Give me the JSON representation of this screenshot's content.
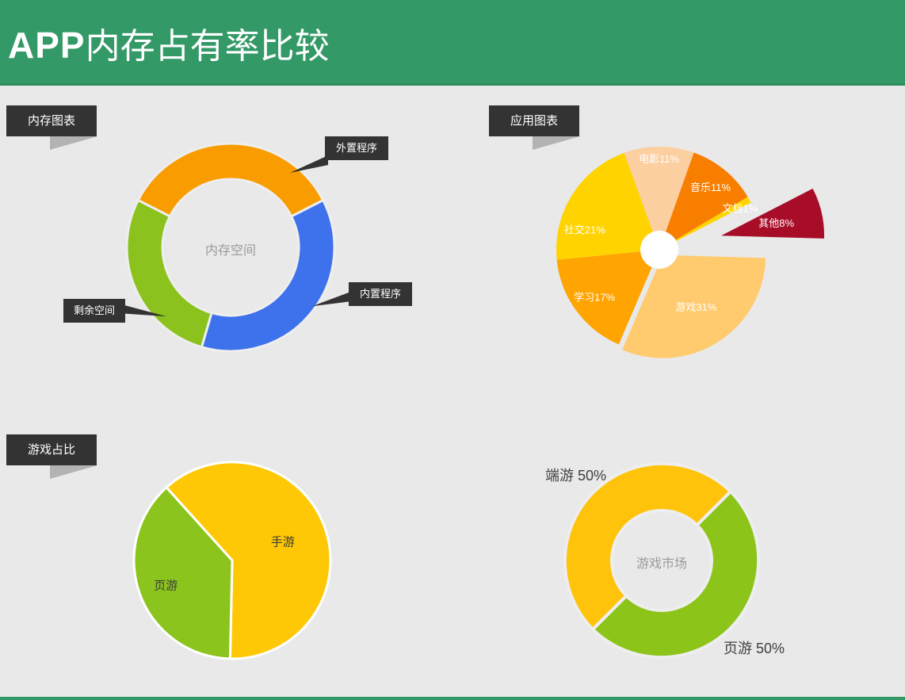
{
  "header": {
    "title_bold": "APP",
    "title_rest": "内存占有率比较"
  },
  "sections": [
    {
      "label": "内存图表"
    },
    {
      "label": "应用图表"
    },
    {
      "label": "游戏占比"
    }
  ],
  "colors": {
    "header_green": "#339966",
    "page_background": "#e9e9e9",
    "label_box_dark": "#333333",
    "fold_gray": "#b3b3b3",
    "center_text_gray": "#9a9a9a"
  },
  "chart_data": [
    {
      "type": "pie",
      "variant": "donut",
      "name": "内存图表",
      "center_label": "内存空间",
      "start_angle": -63,
      "slices": [
        {
          "label": "外置程序",
          "value": 35,
          "color": "#F99C00"
        },
        {
          "label": "内置程序",
          "value": 37,
          "color": "#3E72EC"
        },
        {
          "label": "剩余空间",
          "value": 28,
          "color": "#8CC21E"
        }
      ]
    },
    {
      "type": "pie",
      "name": "应用图表",
      "start_angle": -20,
      "slices": [
        {
          "label": "电影",
          "value": 11,
          "display": "电影11%",
          "color": "#FBCFA0"
        },
        {
          "label": "音乐",
          "value": 11,
          "display": "音乐11%",
          "color": "#F87E00"
        },
        {
          "label": "文档",
          "value": 1,
          "display": "文档1%",
          "color": "#FFD400"
        },
        {
          "label": "其他",
          "value": 8,
          "display": "其他8%",
          "color": "#A80D28",
          "explode": 80
        },
        {
          "label": "游戏",
          "value": 31,
          "display": "游戏31%",
          "color": "#FFCB6E",
          "explode": 8
        },
        {
          "label": "学习",
          "value": 17,
          "display": "学习17%",
          "color": "#FFA400"
        },
        {
          "label": "社交",
          "value": 21,
          "display": "社交21%",
          "color": "#FFD300"
        }
      ]
    },
    {
      "type": "pie",
      "name": "游戏占比",
      "start_angle": -42,
      "slices": [
        {
          "label": "手游",
          "value": 62,
          "display": "手游",
          "color": "#FFC806"
        },
        {
          "label": "页游",
          "value": 38,
          "display": "页游",
          "color": "#8CC41E"
        }
      ]
    },
    {
      "type": "pie",
      "variant": "donut",
      "name": "游戏市场",
      "center_label": "游戏市场",
      "start_angle": 225,
      "slices": [
        {
          "label": "端游",
          "value": 50,
          "display": "端游 50%",
          "color": "#FFC30B"
        },
        {
          "label": "页游",
          "value": 50,
          "display": "页游 50%",
          "color": "#8CC41A"
        }
      ]
    }
  ]
}
